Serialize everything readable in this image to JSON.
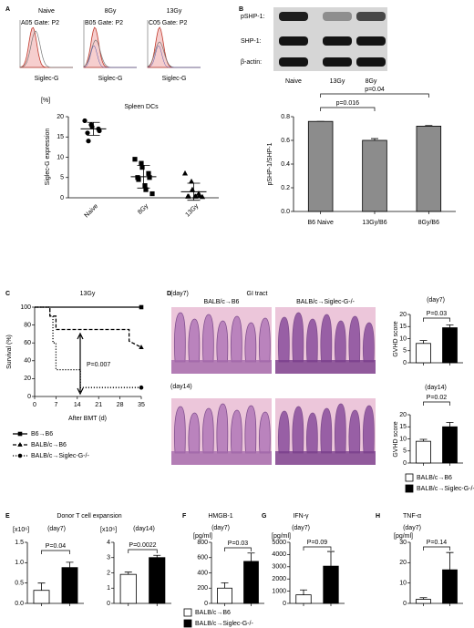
{
  "panel_labels": [
    "A",
    "B",
    "C",
    "D",
    "E",
    "F",
    "G",
    "H"
  ],
  "flow": {
    "plots": [
      {
        "title": "Naive",
        "gate": "A05 Gate: P2",
        "xlabel": "Siglec-G"
      },
      {
        "title": "8Gy",
        "gate": "B05 Gate: P2",
        "xlabel": "Siglec-G"
      },
      {
        "title": "13Gy",
        "gate": "C05 Gate: P2",
        "xlabel": "Siglec-G"
      }
    ]
  },
  "blot": {
    "rows": [
      "pSHP-1:",
      "SHP-1:",
      "β-actin:"
    ],
    "lanes": [
      "Naive",
      "13Gy",
      "8Gy"
    ]
  },
  "histology": {
    "title": "GI tract",
    "columns": [
      "BALB/c→B6",
      "BALB/c→Siglec-G-/-"
    ],
    "rows": [
      "(day7)",
      "(day14)"
    ]
  },
  "legend": {
    "entries": [
      {
        "name": "BALB/c→B6",
        "color": "#ffffff"
      },
      {
        "name": "BALB/c→Siglec-G-/-",
        "color": "#000000"
      }
    ]
  },
  "chart_data": [
    {
      "type": "strip",
      "title": "Spleen DCs",
      "ylabel": "Siglec-G  expression",
      "yunit": "[%]",
      "categories": [
        "Naive",
        "8Gy",
        "13Gy"
      ],
      "markers": [
        "circle",
        "square",
        "triangle"
      ],
      "points": [
        [
          19,
          18,
          17.5,
          17,
          16.5,
          16,
          14
        ],
        [
          9.5,
          8.5,
          7.5,
          6,
          5,
          5,
          4.5,
          3,
          2,
          1
        ],
        [
          6,
          4,
          2,
          1,
          0.5,
          0.3,
          0.3,
          0.3,
          0.3,
          0.2
        ]
      ],
      "means": [
        17,
        5.2,
        1.5
      ],
      "sds": [
        1.6,
        2.8,
        2.1
      ],
      "color": "#000000",
      "ylim": [
        0,
        20
      ],
      "yticks": [
        0,
        5,
        10,
        15,
        20
      ]
    },
    {
      "type": "bar",
      "ylabel": "pSHP-1/SHP-1",
      "categories": [
        "B6 Naive",
        "13Gy/B6",
        "8Gy/B6"
      ],
      "values": [
        0.76,
        0.6,
        0.72
      ],
      "errors": [
        0,
        0.015,
        0.005
      ],
      "color": "#8c8c8c",
      "annotations": [
        "p=0.016",
        "p=0.04"
      ],
      "ylim": [
        0,
        0.8
      ],
      "yticks": [
        {
          "value": 0,
          "label": "0.0"
        },
        0.2,
        0.4,
        0.6,
        0.8
      ]
    },
    {
      "type": "line",
      "title": "13Gy",
      "xlabel": "After BMT (d)",
      "ylabel": "Survival (%)",
      "x": [
        0,
        5,
        5,
        6,
        6,
        7,
        7,
        15,
        15,
        31,
        31,
        35
      ],
      "series": [
        {
          "name": "B6→B6",
          "color": "#000000",
          "style": "solid",
          "marker": "square",
          "values": [
            100,
            100,
            100,
            100,
            100,
            100,
            100,
            100,
            100,
            100,
            100,
            100
          ]
        },
        {
          "name": "BALB/c→B6",
          "color": "#000000",
          "style": "dashed",
          "marker": "triangle",
          "values": [
            100,
            100,
            90,
            90,
            90,
            90,
            75,
            75,
            75,
            75,
            62,
            55
          ]
        },
        {
          "name": "BALB/c→Siglec-G-/-",
          "color": "#000000",
          "style": "dotted",
          "marker": "circle",
          "values": [
            100,
            100,
            90,
            90,
            60,
            60,
            30,
            30,
            10,
            10,
            10,
            10
          ]
        }
      ],
      "annotations": [
        "P=0.007"
      ],
      "xlim": [
        0,
        35
      ],
      "xticks": [
        0,
        7,
        14,
        21,
        28,
        35
      ],
      "ylim": [
        0,
        100
      ],
      "yticks": [
        0,
        20,
        40,
        60,
        80,
        100
      ]
    },
    {
      "type": "bar",
      "title": "(day7)",
      "ylabel": "GVHD score",
      "categories": [
        null,
        null
      ],
      "values": [
        8,
        14.5
      ],
      "errors": [
        1.2,
        1.2
      ],
      "colors": [
        "#ffffff",
        "#000000"
      ],
      "annotations": [
        "P=0.03"
      ],
      "ylim": [
        0,
        20
      ],
      "yticks": [
        0,
        5,
        10,
        15,
        20
      ]
    },
    {
      "type": "bar",
      "title": "(day14)",
      "ylabel": "GVHD score",
      "categories": [
        null,
        null
      ],
      "values": [
        9,
        15
      ],
      "errors": [
        0.8,
        1.8
      ],
      "colors": [
        "#ffffff",
        "#000000"
      ],
      "annotations": [
        "P=0.02"
      ],
      "ylim": [
        0,
        20
      ],
      "yticks": [
        0,
        5,
        10,
        15,
        20
      ]
    },
    {
      "type": "bar",
      "suptitle": "Donor T cell expansion",
      "title": "(day7)",
      "ylabel": "[x10⁶]",
      "categories": [
        null,
        null
      ],
      "values": [
        0.32,
        0.88
      ],
      "errors": [
        0.18,
        0.13
      ],
      "colors": [
        "#ffffff",
        "#000000"
      ],
      "annotations": [
        "P=0.04"
      ],
      "ylim": [
        0,
        1.5
      ],
      "yticks": [
        {
          "value": 0,
          "label": "0.0"
        },
        0.5,
        {
          "value": 1,
          "label": "1.0"
        },
        1.5
      ]
    },
    {
      "type": "bar",
      "title": "(day14)",
      "ylabel": "[x10⁶]",
      "categories": [
        null,
        null
      ],
      "values": [
        1.9,
        3.0
      ],
      "errors": [
        0.15,
        0.15
      ],
      "colors": [
        "#ffffff",
        "#000000"
      ],
      "annotations": [
        "P=0.0022"
      ],
      "ylim": [
        0,
        4
      ],
      "yticks": [
        0,
        1,
        2,
        3,
        4
      ]
    },
    {
      "type": "bar",
      "title": "HMGB-1",
      "subtitle": "(day7)",
      "ylabel": "[pg/ml]",
      "categories": [
        null,
        null
      ],
      "values": [
        200,
        550
      ],
      "errors": [
        70,
        110
      ],
      "colors": [
        "#ffffff",
        "#000000"
      ],
      "annotations": [
        "P=0.03"
      ],
      "ylim": [
        0,
        800
      ],
      "yticks": [
        0,
        200,
        400,
        600,
        800
      ]
    },
    {
      "type": "bar",
      "title": "IFN-γ",
      "subtitle": "(day7)",
      "ylabel": "[pg/ml]",
      "categories": [
        null,
        null
      ],
      "values": [
        700,
        3050
      ],
      "errors": [
        400,
        1200
      ],
      "colors": [
        "#ffffff",
        "#000000"
      ],
      "annotations": [
        "P=0.09"
      ],
      "ylim": [
        0,
        5000
      ],
      "yticks": [
        0,
        1000,
        2000,
        3000,
        4000,
        5000
      ]
    },
    {
      "type": "bar",
      "title": "TNF-α",
      "subtitle": "(day7)",
      "ylabel": "[pg/ml]",
      "categories": [
        null,
        null
      ],
      "values": [
        2,
        16.5
      ],
      "errors": [
        0.8,
        8.5
      ],
      "colors": [
        "#ffffff",
        "#000000"
      ],
      "annotations": [
        "P=0.14"
      ],
      "ylim": [
        0,
        30
      ],
      "yticks": [
        0,
        10,
        20,
        30
      ]
    }
  ]
}
